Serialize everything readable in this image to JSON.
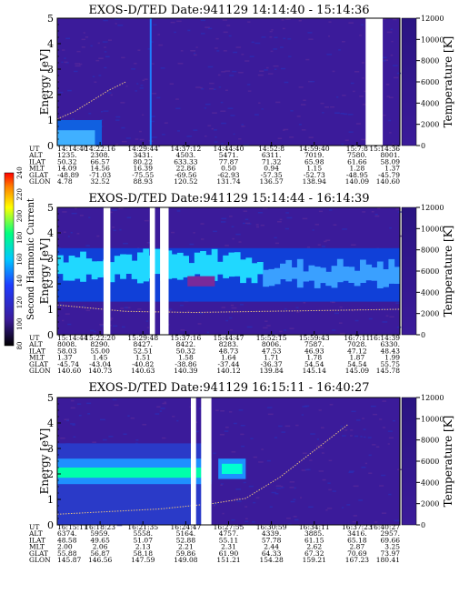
{
  "chart_data": [
    {
      "type": "heatmap",
      "title": "EXOS-D/TED   Date:941129   14:14:40 - 15:14:36",
      "ylabel": "Energy [eV]",
      "y2label": "Temperature [K]",
      "ylim": [
        0,
        5
      ],
      "y2lim": [
        0,
        12000
      ],
      "yticks": [
        "0",
        "1",
        "2",
        "3",
        "4",
        "5"
      ],
      "y2ticks": [
        "0",
        "2000",
        "4000",
        "6000",
        "8000",
        "10000",
        "12000"
      ],
      "row_labels": [
        "UT",
        "ALT",
        "ILAT",
        "MLT",
        "GLAT",
        "GLON"
      ],
      "columns": [
        [
          "14:14:40",
          "1235.",
          "50.32",
          "14.09",
          "-48.89",
          "4.78"
        ],
        [
          "14:22:16",
          "2308.",
          "66.57",
          "14.56",
          "-71.03",
          "32.52"
        ],
        [
          "14:29:44",
          "3431.",
          "80.22",
          "16.39",
          "-75.55",
          "88.93"
        ],
        [
          "14:37:12",
          "4503.",
          "633.33",
          "22.86",
          "-69.56",
          "120.52"
        ],
        [
          "14:44:40",
          "5471.",
          "77.87",
          "0.50",
          "-62.93",
          "131.74"
        ],
        [
          "14:52:8",
          "6311.",
          "71.32",
          "0.94",
          "-57.35",
          "136.57"
        ],
        [
          "14:59:40",
          "7019.",
          "65.98",
          "1.15",
          "-52.73",
          "138.94"
        ],
        [
          "15:7:8",
          "7580.",
          "61.66",
          "1.28",
          "-48.95",
          "140.09"
        ],
        [
          "15:14:36",
          "8001.",
          "58.09",
          "1.37",
          "-45.79",
          "140.60"
        ]
      ],
      "temperature_trace": [
        [
          0,
          2500
        ],
        [
          0.05,
          3200
        ],
        [
          0.1,
          4200
        ],
        [
          0.15,
          5200
        ],
        [
          0.2,
          6000
        ]
      ],
      "gaps": [
        [
          0.9,
          0.95
        ]
      ],
      "colors": {
        "background": "#3b1b9a",
        "band": "#1e90ff"
      }
    },
    {
      "type": "heatmap",
      "title": "EXOS-D/TED   Date:941129   15:14:44 - 16:14:39",
      "ylabel": "Energy [eV]",
      "y2label": "Temperature [K]",
      "colorbar_label": "Second Harmonic Current",
      "colorbar_ticks": [
        "80",
        "100",
        "120",
        "140",
        "160",
        "180",
        "200",
        "220",
        "240"
      ],
      "ylim": [
        0,
        5
      ],
      "y2lim": [
        0,
        12000
      ],
      "yticks": [
        "0",
        "1",
        "2",
        "3",
        "4",
        "5"
      ],
      "y2ticks": [
        "0",
        "2000",
        "4000",
        "6000",
        "8000",
        "10000",
        "12000"
      ],
      "row_labels": [
        "UT",
        "ALT",
        "ILAT",
        "MLT",
        "GLAT",
        "GLON"
      ],
      "columns": [
        [
          "15:14:44",
          "8008.",
          "58.03",
          "1.37",
          "-45.74",
          "140.60"
        ],
        [
          "15:22:20",
          "8290.",
          "55.00",
          "1.45",
          "-43.04",
          "140.73"
        ],
        [
          "15:29:48",
          "8427.",
          "52.51",
          "1.51",
          "-40.82",
          "140.63"
        ],
        [
          "15:37:16",
          "8422.",
          "50.32",
          "1.58",
          "-38.86",
          "140.39"
        ],
        [
          "15:44:47",
          "8283.",
          "48.73",
          "1.64",
          "-37.44",
          "140.12"
        ],
        [
          "15:52:15",
          "8006.",
          "47.53",
          "1.71",
          "-36.37",
          "139.84"
        ],
        [
          "15:59:43",
          "7587.",
          "46.93",
          "1.78",
          "54.54",
          "145.14"
        ],
        [
          "16:7:11",
          "7028.",
          "47.12",
          "1.87",
          "54.54",
          "145.09"
        ],
        [
          "16:14:39",
          "6330.",
          "48.43",
          "1.99",
          "55.75",
          "145.78"
        ]
      ],
      "temperature_trace": [
        [
          0,
          2800
        ],
        [
          0.2,
          2200
        ],
        [
          0.4,
          2100
        ],
        [
          0.6,
          2200
        ],
        [
          0.8,
          2300
        ],
        [
          1,
          2400
        ]
      ],
      "gaps": [
        [
          0.135,
          0.155
        ],
        [
          0.27,
          0.285
        ],
        [
          0.3,
          0.325
        ]
      ],
      "colors": {
        "background": "#3b1b9a",
        "band": "#00d4ff"
      }
    },
    {
      "type": "heatmap",
      "title": "EXOS-D/TED   Date:941129   16:15:11 - 16:40:27",
      "ylabel": "Energy [eV]",
      "y2label": "Temperature [K]",
      "ylim": [
        0,
        5
      ],
      "y2lim": [
        0,
        12000
      ],
      "yticks": [
        "0",
        "1",
        "2",
        "3",
        "4",
        "5"
      ],
      "y2ticks": [
        "0",
        "2000",
        "4000",
        "6000",
        "8000",
        "10000",
        "12000"
      ],
      "row_labels": [
        "UT",
        "ALT",
        "ILAT",
        "MLT",
        "GLAT",
        "GLON"
      ],
      "columns": [
        [
          "16:15:11",
          "6374.",
          "48.58",
          "2.00",
          "55.88",
          "145.87"
        ],
        [
          "16:18:23",
          "5959.",
          "49.65",
          "2.06",
          "56.87",
          "146.56"
        ],
        [
          "16:21:35",
          "5558.",
          "51.07",
          "2.13",
          "58.18",
          "147.59"
        ],
        [
          "16:24:47",
          "5164.",
          "52.88",
          "2.21",
          "59.86",
          "149.08"
        ],
        [
          "16:27:55",
          "4757.",
          "55.11",
          "2.31",
          "61.90",
          "151.21"
        ],
        [
          "16:30:59",
          "4339.",
          "57.78",
          "2.44",
          "64.33",
          "154.28"
        ],
        [
          "16:34:11",
          "3885.",
          "61.15",
          "2.62",
          "67.32",
          "159.21"
        ],
        [
          "16:37:23",
          "3416.",
          "65.18",
          "2.87",
          "70.69",
          "167.23"
        ],
        [
          "16:40:27",
          "2957.",
          "69.66",
          "3.25",
          "73.97",
          "180.41"
        ]
      ],
      "temperature_trace": [
        [
          0,
          1000
        ],
        [
          0.3,
          1500
        ],
        [
          0.45,
          2000
        ],
        [
          0.55,
          2500
        ],
        [
          0.65,
          4500
        ],
        [
          0.75,
          7000
        ],
        [
          0.85,
          9500
        ]
      ],
      "gaps": [
        [
          0.39,
          0.405
        ],
        [
          0.42,
          0.45
        ]
      ],
      "colors": {
        "background": "#3b1b9a",
        "band": "#00ffaa"
      }
    }
  ]
}
